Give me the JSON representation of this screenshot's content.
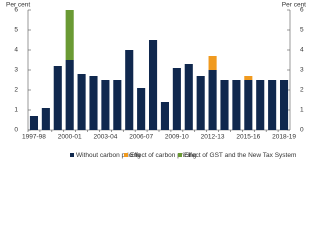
{
  "chart_data": {
    "type": "bar",
    "stacked": true,
    "y_label": "Per cent",
    "y2_label": "Per cent",
    "categories": [
      "1997-98",
      null,
      null,
      "2000-01",
      null,
      null,
      "2003-04",
      null,
      null,
      "2006-07",
      null,
      null,
      "2009-10",
      null,
      null,
      "2012-13",
      null,
      null,
      "2015-16",
      null,
      null,
      "2018-19"
    ],
    "series": [
      {
        "name": "Without carbon pricing",
        "color": "#10284e",
        "values": [
          0.7,
          1.1,
          3.2,
          3.5,
          2.8,
          2.7,
          2.5,
          2.5,
          4.0,
          2.1,
          4.5,
          1.4,
          3.1,
          3.3,
          2.7,
          3.0,
          2.5,
          2.5,
          2.5,
          2.5,
          2.5,
          2.5
        ]
      },
      {
        "name": "Effect of carbon pricing",
        "color": "#f09a1f",
        "values": [
          null,
          null,
          null,
          null,
          null,
          null,
          null,
          null,
          null,
          null,
          null,
          null,
          null,
          null,
          null,
          0.7,
          null,
          null,
          0.2,
          null,
          null,
          null
        ]
      },
      {
        "name": "Effect of GST and the New Tax System",
        "color": "#6a9a34",
        "values": [
          null,
          null,
          null,
          2.5,
          null,
          null,
          null,
          null,
          null,
          null,
          null,
          null,
          null,
          null,
          null,
          null,
          null,
          null,
          null,
          null,
          null,
          null
        ]
      }
    ],
    "ylim": [
      0,
      6
    ],
    "yticks": [
      0,
      1,
      2,
      3,
      4,
      5,
      6
    ],
    "y2lim": [
      0,
      6
    ],
    "y2ticks": [
      0,
      1,
      2,
      3,
      4,
      5,
      6
    ],
    "legend": "bottom"
  }
}
